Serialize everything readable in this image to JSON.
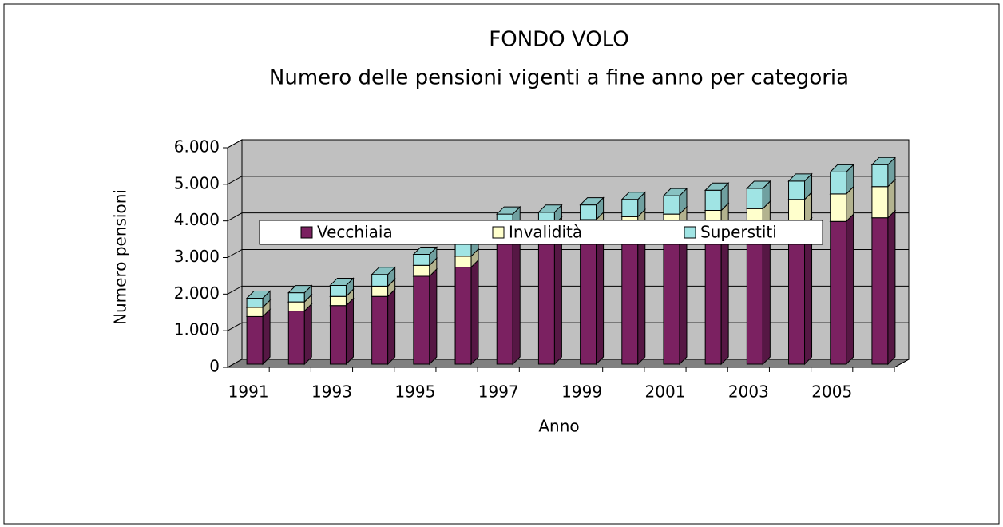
{
  "chart_data": {
    "type": "bar3d_stacked",
    "title": "FONDO VOLO",
    "subtitle": "Numero delle pensioni vigenti a fine anno per categoria",
    "x_label": "Anno",
    "y_label": "Numero pensioni",
    "categories": [
      "1991",
      null,
      "1993",
      null,
      "1995",
      null,
      "1997",
      null,
      "1999",
      null,
      "2001",
      null,
      "2003",
      null,
      "2005",
      null
    ],
    "series": [
      {
        "name": "Vecchiaia",
        "color": "#7b2161",
        "values": [
          1300,
          1450,
          1600,
          1850,
          2400,
          2650,
          3300,
          3400,
          3500,
          3550,
          3600,
          3650,
          3700,
          3800,
          3900,
          4000
        ]
      },
      {
        "name": "Invalidità",
        "color": "#ffffcc",
        "values": [
          250,
          250,
          250,
          280,
          300,
          300,
          400,
          420,
          450,
          480,
          500,
          550,
          550,
          700,
          750,
          850
        ]
      },
      {
        "name": "Superstiti",
        "color": "#a0e4e4",
        "values": [
          250,
          250,
          300,
          320,
          300,
          450,
          400,
          330,
          400,
          470,
          500,
          550,
          550,
          500,
          600,
          600
        ]
      }
    ],
    "ylim": [
      0,
      6000
    ],
    "yticks": [
      0,
      {
        "value": 1000,
        "label": "1.000"
      },
      {
        "value": 2000,
        "label": "2.000"
      },
      {
        "value": 3000,
        "label": "3.000"
      },
      {
        "value": 4000,
        "label": "4.000"
      },
      {
        "value": 5000,
        "label": "5.000"
      },
      {
        "value": 6000,
        "label": "6.000"
      }
    ],
    "grid": true,
    "legend": "center"
  }
}
